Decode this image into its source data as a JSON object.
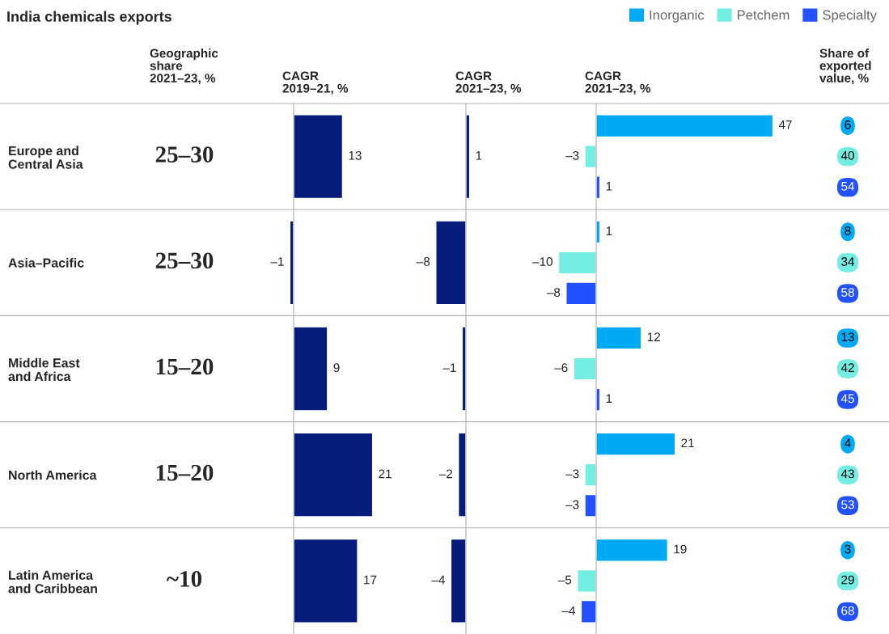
{
  "chart_data": [
    {
      "type": "other",
      "title": "India chemicals exports",
      "subtitle": "Geographic\nshare\n2021–23, %",
      "annotations": [
        "25–30",
        "25–30",
        "15–20",
        "15–20",
        "~10"
      ]
    },
    {
      "type": "bar",
      "orientation": "horizontal",
      "title": "CAGR\n2019–21, %",
      "categories": [
        "Europe and\nCentral Asia",
        "Asia–Pacific",
        "Middle East\nand Africa",
        "North America",
        "Latin America\nand Caribbean"
      ],
      "values": [
        13,
        -1,
        9,
        21,
        17
      ],
      "value_labels": [
        "13",
        "–1",
        "9",
        "21",
        "17"
      ],
      "color": "#051c7a",
      "tick_labels": "y"
    },
    {
      "type": "bar",
      "orientation": "horizontal",
      "title": "CAGR\n2021–23, %",
      "categories": [
        null,
        null,
        null,
        null,
        null
      ],
      "values": [
        1,
        -8,
        -1,
        -2,
        -4
      ],
      "value_labels": [
        "1",
        "–8",
        "–1",
        "–2",
        "–4"
      ],
      "color": "#051c7a"
    },
    {
      "type": "bar",
      "orientation": "horizontal",
      "title": "CAGR\n2021–23, %",
      "categories": [
        null,
        null,
        null,
        null,
        null
      ],
      "legend": "top right",
      "series": [
        {
          "name": "Inorganic",
          "color": "#00a9f4",
          "values": [
            47,
            1,
            12,
            21,
            19
          ],
          "value_labels": [
            "47",
            "1",
            "12",
            "21",
            "19"
          ]
        },
        {
          "name": "Petchem",
          "color": "#74ede2",
          "values": [
            -3,
            -10,
            -6,
            -3,
            -5
          ],
          "value_labels": [
            "–3",
            "–10",
            "–6",
            "–3",
            "–5"
          ]
        },
        {
          "name": "Specialty",
          "color": "#2251ff",
          "values": [
            1,
            -8,
            1,
            -3,
            -4
          ],
          "value_labels": [
            "1",
            "–8",
            "1",
            "–3",
            "–4"
          ]
        }
      ]
    },
    {
      "type": "other",
      "title": "Share of\nexported\nvalue, %",
      "annotations": [
        "6",
        "40",
        "54",
        "8",
        "34",
        "58",
        "13",
        "42",
        "45",
        "4",
        "43",
        "53",
        "3",
        "29",
        "68"
      ]
    }
  ]
}
